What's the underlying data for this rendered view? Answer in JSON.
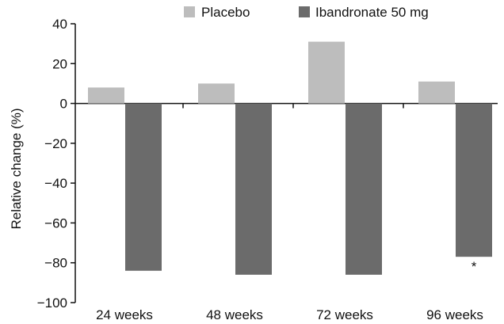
{
  "chart_data": {
    "type": "bar",
    "title": "",
    "xlabel": "",
    "ylabel": "Relative change (%)",
    "ylim": [
      -100,
      40
    ],
    "yticks": [
      40,
      20,
      0,
      -20,
      -40,
      -60,
      -80,
      -100
    ],
    "ytick_labels": [
      "40",
      "20",
      "0",
      "−20",
      "−40",
      "−60",
      "−80",
      "−100"
    ],
    "categories": [
      "24 weeks",
      "48 weeks",
      "72 weeks",
      "96 weeks"
    ],
    "series": [
      {
        "name": "Placebo",
        "color": "#bdbdbd",
        "values": [
          8,
          10,
          31,
          11
        ]
      },
      {
        "name": "Ibandronate 50 mg",
        "color": "#6b6b6b",
        "values": [
          -84,
          -86,
          -86,
          -77
        ]
      }
    ],
    "legend": {
      "position": "top"
    },
    "grid": false,
    "annotations": [
      {
        "text": "*",
        "category": "96 weeks",
        "series": "Ibandronate 50 mg"
      }
    ]
  }
}
